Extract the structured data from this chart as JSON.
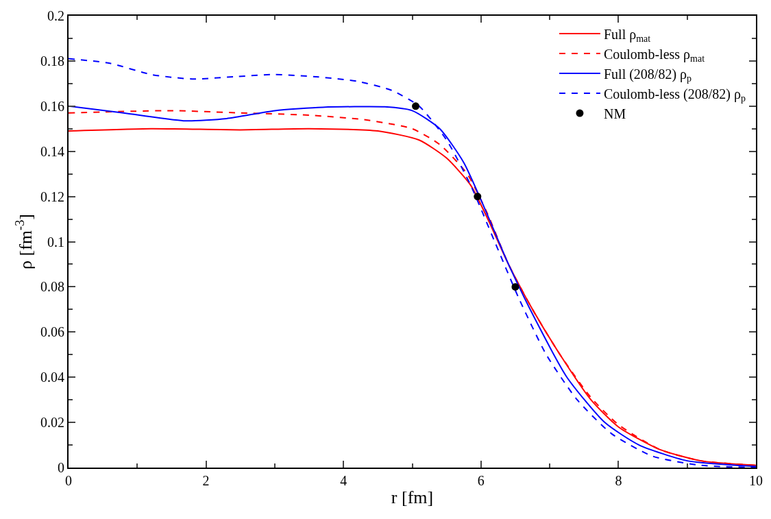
{
  "chart_data": {
    "type": "line",
    "xlabel": "r [fm]",
    "ylabel": "ρ [fm$^{-3}$]",
    "xlim": [
      0,
      10
    ],
    "xticks": [
      0,
      2,
      4,
      6,
      8,
      10
    ],
    "ylim": [
      0,
      0.2
    ],
    "yticks": [
      0,
      0.02,
      0.04,
      0.06,
      0.08,
      0.1,
      0.12,
      0.14,
      0.16,
      0.18,
      0.2
    ],
    "legend": "top right",
    "series": [
      {
        "name": "Full ρ$_{mat}$",
        "color": "#ff0000",
        "line_style": "solid",
        "marker": "none",
        "x": [
          0,
          1.2,
          2.5,
          3.5,
          4.5,
          5.1,
          5.5,
          5.85,
          6.1,
          6.4,
          6.75,
          7.15,
          7.6,
          8,
          8.6,
          9.2,
          10
        ],
        "values": [
          0.149,
          0.15,
          0.1495,
          0.15,
          0.149,
          0.145,
          0.137,
          0.125,
          0.11,
          0.09,
          0.07,
          0.05,
          0.03,
          0.018,
          0.008,
          0.003,
          0.001
        ]
      },
      {
        "name": "Coulomb-less ρ$_{mat}$",
        "color": "#ff0000",
        "line_style": "dashed",
        "marker": "none",
        "x": [
          0,
          1.5,
          2.5,
          3.5,
          4.3,
          5,
          5.4,
          5.8,
          6.1,
          6.4,
          6.75,
          7.15,
          7.6,
          8,
          8.6,
          9.2,
          10
        ],
        "values": [
          0.157,
          0.158,
          0.157,
          0.156,
          0.154,
          0.15,
          0.143,
          0.13,
          0.112,
          0.09,
          0.07,
          0.05,
          0.031,
          0.019,
          0.008,
          0.003,
          0.001
        ]
      },
      {
        "name": "Full (208/82) ρ$_{p}$",
        "color": "#0000ff",
        "line_style": "solid",
        "marker": "none",
        "x": [
          0,
          0.8,
          1.7,
          2.3,
          3,
          3.7,
          4.6,
          5,
          5.4,
          5.75,
          6.05,
          6.4,
          6.8,
          7.25,
          7.8,
          8.3,
          9,
          10
        ],
        "values": [
          0.16,
          0.157,
          0.1535,
          0.1545,
          0.158,
          0.1595,
          0.1597,
          0.158,
          0.15,
          0.135,
          0.115,
          0.09,
          0.065,
          0.04,
          0.02,
          0.01,
          0.003,
          0.0005
        ]
      },
      {
        "name": "Coulomb-less (208/82) ρ$_{p}$",
        "color": "#0000ff",
        "line_style": "dashed",
        "marker": "none",
        "x": [
          0,
          0.6,
          1.2,
          1.8,
          2.4,
          3,
          3.6,
          4.2,
          4.7,
          5.1,
          5.5,
          5.85,
          6.2,
          6.55,
          6.95,
          7.4,
          7.9,
          8.5,
          9.2,
          10
        ],
        "values": [
          0.181,
          0.179,
          0.174,
          0.172,
          0.173,
          0.174,
          0.173,
          0.171,
          0.167,
          0.16,
          0.145,
          0.125,
          0.1,
          0.075,
          0.05,
          0.03,
          0.015,
          0.005,
          0.001,
          0
        ]
      },
      {
        "name": "NM",
        "type": "scatter",
        "color": "#000000",
        "marker": "circle",
        "x": [
          5.05,
          5.95,
          6.5
        ],
        "values": [
          0.16,
          0.12,
          0.08
        ]
      }
    ]
  }
}
